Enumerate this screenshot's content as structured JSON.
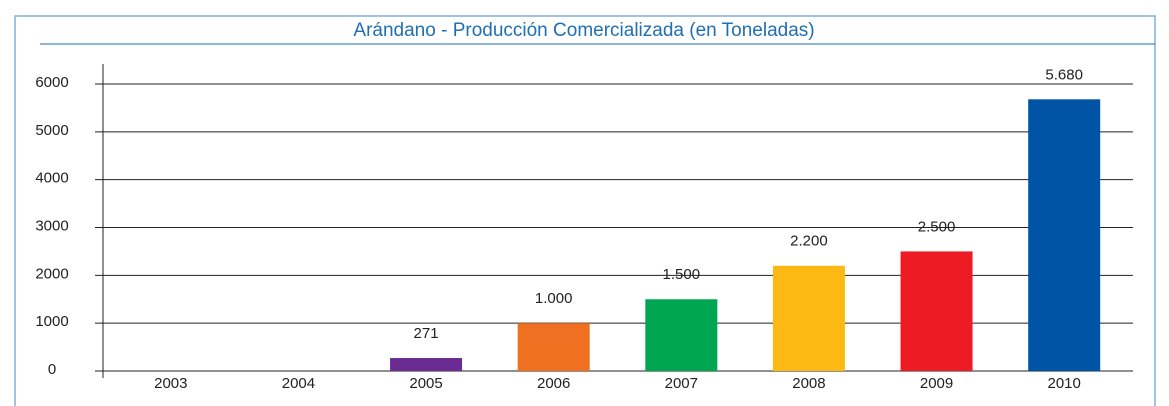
{
  "chart_data": {
    "type": "bar",
    "title": "Arándano - Producción Comercializada (en Toneladas)",
    "categories": [
      "2003",
      "2004",
      "2005",
      "2006",
      "2007",
      "2008",
      "2009",
      "2010"
    ],
    "values": [
      null,
      null,
      271,
      1000,
      1500,
      2200,
      2500,
      5680
    ],
    "value_labels": [
      null,
      null,
      "271",
      "1.000",
      "1.500",
      "2.200",
      "2.500",
      "5.680"
    ],
    "colors": [
      null,
      null,
      "#6a2c91",
      "#f07022",
      "#00a651",
      "#fdb913",
      "#ed1c24",
      "#0054a6"
    ],
    "ylim": [
      0,
      6000
    ],
    "yticks": [
      0,
      1000,
      2000,
      3000,
      4000,
      5000,
      6000
    ],
    "grid": true
  }
}
